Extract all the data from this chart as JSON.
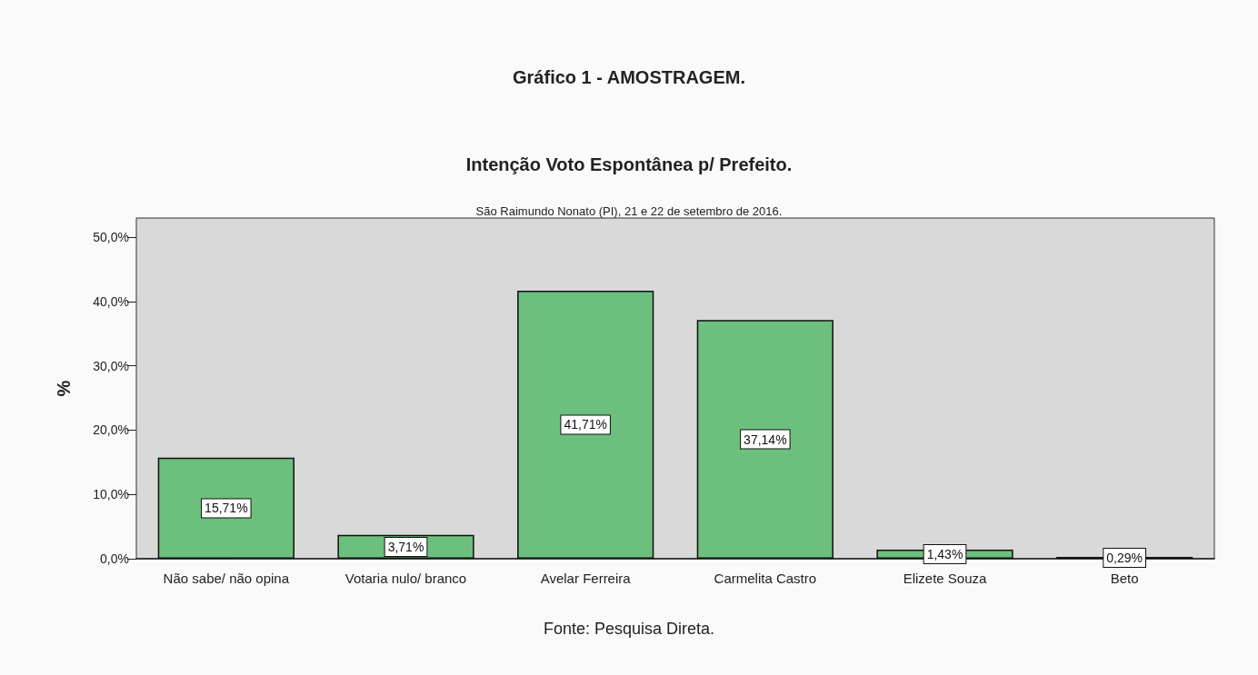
{
  "chart_data": {
    "type": "bar",
    "title": "Gráfico 1 - AMOSTRAGEM.",
    "subtitle": "Intenção Voto Espontânea p/ Prefeito.",
    "ylabel": "%",
    "categories": [
      "Não sabe/ não opina",
      "Votaria nulo/ branco",
      "Avelar Ferreira",
      "Carmelita Castro",
      "Elizete Souza",
      "Beto"
    ],
    "values": [
      15.71,
      3.71,
      41.71,
      37.14,
      1.43,
      0.29
    ],
    "value_labels": [
      "15,71%",
      "3,71%",
      "41,71%",
      "37,14%",
      "1,43%",
      "0,29%"
    ],
    "color": "#6dbf7e",
    "ylim": [
      0,
      53
    ],
    "yticks": [
      {
        "value": 0,
        "label": "0,0%"
      },
      {
        "value": 10,
        "label": "10,0%"
      },
      {
        "value": 20,
        "label": "20,0%"
      },
      {
        "value": 30,
        "label": "30,0%"
      },
      {
        "value": 40,
        "label": "40,0%"
      },
      {
        "value": 50,
        "label": "50,0%"
      }
    ],
    "grid": false,
    "annotations": [
      "São Raimundo Nonato (PI), 21 e 22 de setembro de 2016.",
      "Fonte: Pesquisa Direta."
    ]
  }
}
